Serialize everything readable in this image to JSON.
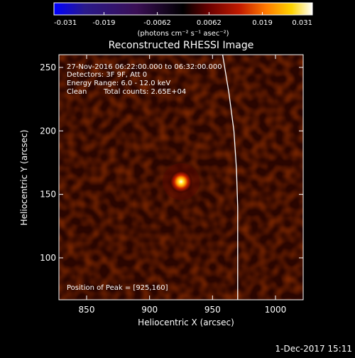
{
  "chart_data": {
    "type": "heatmap",
    "title": "Reconstructed RHESSI Image",
    "xlabel": "Heliocentric X (arcsec)",
    "ylabel": "Heliocentric Y (arcsec)",
    "xlim": [
      828,
      1022
    ],
    "ylim": [
      67,
      260
    ],
    "x_ticks": [
      850,
      900,
      950,
      1000
    ],
    "y_ticks": [
      100,
      150,
      200,
      250
    ],
    "colorbar": {
      "min": -0.031,
      "max": 0.031,
      "ticks": [
        "-0.031",
        "-0.019",
        "-0.0062",
        "0.0062",
        "0.019",
        "0.031"
      ],
      "unit_label": "(photons cm⁻² s⁻¹ asec⁻²)",
      "colormap": [
        "#0000ff",
        "#2a1a8a",
        "#3a0f55",
        "#000000",
        "#6b0000",
        "#c21b00",
        "#ff7a00",
        "#ffd400",
        "#ffffff"
      ]
    },
    "annotations": {
      "time_range": "27-Nov-2016 06:22:00.000 to 06:32:00.000",
      "detectors": "Detectors: 3F 9F, Att 0",
      "energy_range": "Energy Range: 6.0 - 12.0 keV",
      "method": "Clean",
      "total_counts": "Total counts: 2.65E+04",
      "peak_position": "Position of Peak = [925,160]"
    },
    "peak": {
      "x": 925,
      "y": 160
    },
    "limb_curve": [
      [
        958,
        260
      ],
      [
        963,
        230
      ],
      [
        967,
        200
      ],
      [
        969,
        170
      ],
      [
        970,
        140
      ],
      [
        970,
        110
      ],
      [
        970,
        67
      ]
    ],
    "background_level": 0.004,
    "grid": false
  },
  "footer": {
    "date": "1-Dec-2017 15:11"
  }
}
